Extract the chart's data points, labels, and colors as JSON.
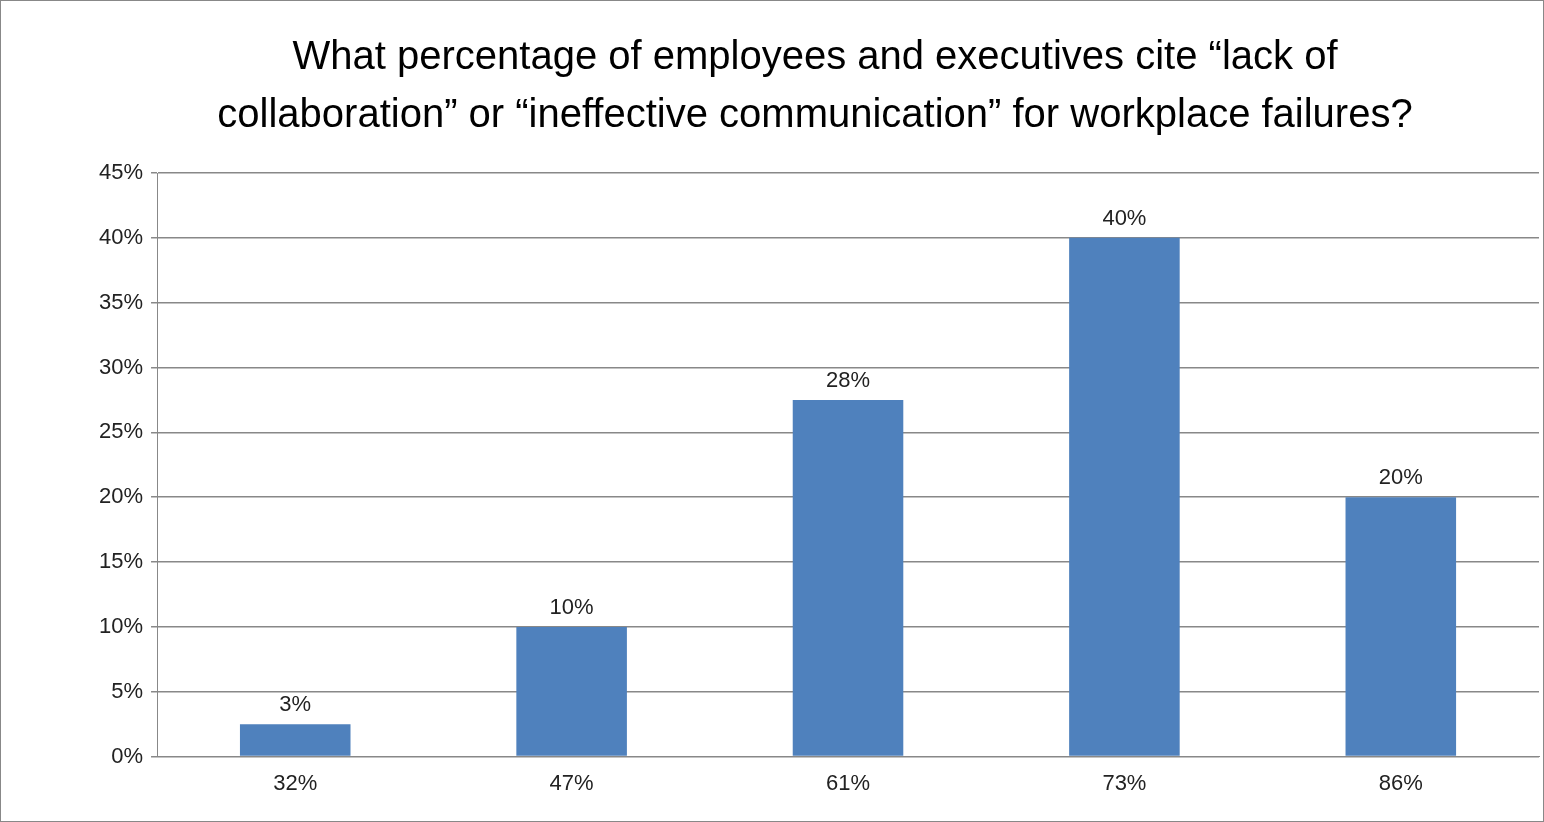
{
  "chart_data": {
    "type": "bar",
    "title": "What percentage of employees and executives cite “lack of collaboration” or “ineffective communication” for workplace failures?",
    "categories": [
      "32%",
      "47%",
      "61%",
      "73%",
      "86%"
    ],
    "values": [
      2.5,
      10,
      27.5,
      40,
      20
    ],
    "value_labels": [
      "3%",
      "10%",
      "28%",
      "40%",
      "20%"
    ],
    "color": "#4f81bd",
    "ylim": [
      0,
      45
    ],
    "yticks": [
      {
        "value": 0,
        "label": "0%"
      },
      {
        "value": 5,
        "label": "5%"
      },
      {
        "value": 10,
        "label": "10%"
      },
      {
        "value": 15,
        "label": "15%"
      },
      {
        "value": 20,
        "label": "20%"
      },
      {
        "value": 25,
        "label": "25%"
      },
      {
        "value": 30,
        "label": "30%"
      },
      {
        "value": 35,
        "label": "35%"
      },
      {
        "value": 40,
        "label": "40%"
      },
      {
        "value": 45,
        "label": "45%"
      }
    ],
    "grid": "y",
    "legend": false
  }
}
